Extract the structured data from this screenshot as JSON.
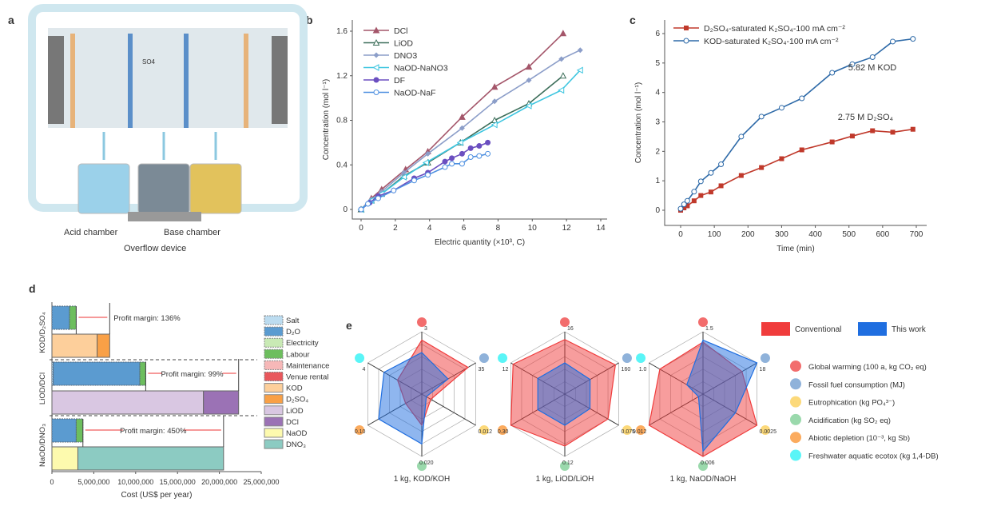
{
  "panel_labels": [
    "a",
    "b",
    "c",
    "d",
    "e"
  ],
  "panel_a": {
    "acid_label": "Acid chamber",
    "base_label": "Base chamber",
    "device_label": "Overflow device",
    "ion_label": "SO4"
  },
  "chart_data": [
    {
      "panel": "b",
      "type": "line",
      "xlabel": "Electric quantity (×10³, C)",
      "ylabel": "Concentration (mol l⁻¹)",
      "xlim": [
        0,
        14
      ],
      "ylim": [
        0,
        1.6
      ],
      "xticks": [
        0,
        2,
        4,
        6,
        8,
        10,
        12,
        14
      ],
      "yticks": [
        0,
        0.4,
        0.8,
        1.2,
        1.6
      ],
      "legend": "top-left",
      "series": [
        {
          "name": "DCl",
          "color": "#a4566a",
          "marker": "triangle",
          "x": [
            0,
            0.6,
            1.2,
            2.6,
            3.9,
            5.9,
            7.8,
            9.8,
            11.8
          ],
          "y": [
            0,
            0.1,
            0.18,
            0.36,
            0.52,
            0.83,
            1.1,
            1.28,
            1.58
          ]
        },
        {
          "name": "LiOD",
          "color": "#3c6e5a",
          "marker": "triangle-open",
          "x": [
            0,
            0.6,
            1.2,
            2.5,
            3.9,
            5.8,
            7.8,
            9.8,
            11.8
          ],
          "y": [
            0,
            0.08,
            0.14,
            0.3,
            0.42,
            0.6,
            0.8,
            0.95,
            1.2
          ]
        },
        {
          "name": "DNO3",
          "color": "#8c9ec9",
          "marker": "diamond",
          "x": [
            0,
            0.6,
            1.2,
            2.5,
            3.9,
            5.9,
            7.8,
            9.8,
            11.7,
            12.8
          ],
          "y": [
            0,
            0.09,
            0.16,
            0.33,
            0.5,
            0.73,
            0.97,
            1.16,
            1.35,
            1.43
          ]
        },
        {
          "name": "NaOD-NaNO3",
          "color": "#3fc6e0",
          "marker": "triangle-left-open",
          "x": [
            0,
            0.6,
            1.2,
            2.5,
            3.8,
            5.8,
            7.8,
            9.8,
            11.7,
            12.8
          ],
          "y": [
            0,
            0.08,
            0.14,
            0.29,
            0.42,
            0.6,
            0.76,
            0.93,
            1.07,
            1.25
          ]
        },
        {
          "name": "DF",
          "color": "#6b4fc0",
          "marker": "circle",
          "x": [
            0,
            0.5,
            1,
            1.9,
            3.1,
            3.9,
            4.9,
            5.3,
            5.9,
            6.4,
            6.9,
            7.4
          ],
          "y": [
            0,
            0.06,
            0.12,
            0.17,
            0.28,
            0.33,
            0.43,
            0.46,
            0.5,
            0.55,
            0.57,
            0.6
          ]
        },
        {
          "name": "NaOD-NaF",
          "color": "#4d8fe0",
          "marker": "circle-open",
          "x": [
            0,
            0.4,
            1,
            1.9,
            3.1,
            3.9,
            4.9,
            5.3,
            5.9,
            6.4,
            6.9,
            7.4
          ],
          "y": [
            0,
            0.05,
            0.1,
            0.17,
            0.26,
            0.31,
            0.38,
            0.41,
            0.41,
            0.47,
            0.48,
            0.5
          ]
        }
      ]
    },
    {
      "panel": "c",
      "type": "line",
      "xlabel": "Time (min)",
      "ylabel": "Concentration (mol l⁻¹)",
      "xlim": [
        0,
        700
      ],
      "ylim": [
        0,
        6
      ],
      "xticks": [
        0,
        100,
        200,
        300,
        400,
        500,
        600,
        700
      ],
      "yticks": [
        0,
        1,
        2,
        3,
        4,
        5,
        6
      ],
      "legend": "top-left",
      "series": [
        {
          "name": "D₂SO₄-saturated K₂SO₄-100 mA cm⁻²",
          "color": "#c0392b",
          "marker": "square",
          "x": [
            0,
            10,
            20,
            40,
            60,
            90,
            120,
            180,
            240,
            300,
            360,
            450,
            510,
            570,
            630,
            690
          ],
          "y": [
            0,
            0.08,
            0.15,
            0.32,
            0.5,
            0.62,
            0.83,
            1.18,
            1.45,
            1.75,
            2.05,
            2.32,
            2.52,
            2.7,
            2.65,
            2.75
          ]
        },
        {
          "name": "KOD-saturated K₂SO₄-100 mA cm⁻²",
          "color": "#2e6aa8",
          "marker": "circle-open",
          "x": [
            0,
            10,
            20,
            40,
            60,
            90,
            120,
            180,
            240,
            300,
            360,
            450,
            510,
            570,
            630,
            690
          ],
          "y": [
            0.05,
            0.2,
            0.32,
            0.63,
            0.98,
            1.27,
            1.56,
            2.5,
            3.18,
            3.48,
            3.8,
            4.67,
            4.96,
            5.2,
            5.73,
            5.82
          ]
        }
      ],
      "annotations": [
        "5.82 M KOD",
        "2.75 M D₂SO₄"
      ]
    },
    {
      "panel": "d",
      "type": "bar",
      "orientation": "horizontal",
      "stacked": true,
      "xlabel": "Cost (US$ per year)",
      "xlim": [
        0,
        25000000
      ],
      "xticks": [
        "0",
        "5,000,000",
        "10,000,000",
        "15,000,000",
        "20,000,000",
        "25,000,000"
      ],
      "legend": "right",
      "categories": [
        "KOD/D₂SO₄",
        "LiOD/DCl",
        "NaOD/DNO₃"
      ],
      "components": [
        {
          "name": "Salt",
          "color": "#bcdcf0"
        },
        {
          "name": "D₂O",
          "color": "#5b9bd0"
        },
        {
          "name": "Electricity",
          "color": "#c9eab5"
        },
        {
          "name": "Labour",
          "color": "#6dbe5e"
        },
        {
          "name": "Maintenance",
          "color": "#f7b8b8"
        },
        {
          "name": "Venue rental",
          "color": "#e8575c"
        },
        {
          "name": "KOD",
          "color": "#fdcf9b"
        },
        {
          "name": "D₂SO₄",
          "color": "#f9a046"
        },
        {
          "name": "LiOD",
          "color": "#d9c7e2"
        },
        {
          "name": "DCl",
          "color": "#9b72b5"
        },
        {
          "name": "NaOD",
          "color": "#fdfaae"
        },
        {
          "name": "DNO₃",
          "color": "#8ccbc2"
        }
      ],
      "groups": [
        {
          "cost": [
            [
              "Salt",
              0
            ],
            [
              "D₂O",
              2100000
            ],
            [
              "Labour",
              800000
            ]
          ],
          "revenue": [
            [
              "KOD",
              5400000
            ],
            [
              "D₂SO₄",
              1500000
            ]
          ],
          "margin": "Profit margin: 136%"
        },
        {
          "cost": [
            [
              "Salt",
              150000
            ],
            [
              "D₂O",
              10350000
            ],
            [
              "Labour",
              700000
            ]
          ],
          "revenue": [
            [
              "LiOD",
              18100000
            ],
            [
              "DCl",
              4200000
            ]
          ],
          "margin": "Profit margin: 99%"
        },
        {
          "cost": [
            [
              "Salt",
              0
            ],
            [
              "D₂O",
              2900000
            ],
            [
              "Labour",
              800000
            ]
          ],
          "revenue": [
            [
              "NaOD",
              3100000
            ],
            [
              "DNO₃",
              17400000
            ]
          ],
          "margin": "Profit margin: 450%"
        }
      ]
    },
    {
      "panel": "e",
      "type": "radar",
      "axes": [
        {
          "name": "Global warming (100 a, kg CO₂ eq)",
          "color": "#f26d6d"
        },
        {
          "name": "Fossil fuel consumption (MJ)",
          "color": "#8fb2da"
        },
        {
          "name": "Eutrophication (kg PO₄³⁻)",
          "color": "#fcd97a"
        },
        {
          "name": "Acidification (kg SO₂ eq)",
          "color": "#9ad9ac"
        },
        {
          "name": "Abiotic depletion (10⁻³, kg Sb)",
          "color": "#fbab5e"
        },
        {
          "name": "Freshwater aquatic ecotox (kg 1,4-DB)",
          "color": "#5af5f7"
        }
      ],
      "series_legend": [
        {
          "name": "Conventional",
          "color": "#f03c3c"
        },
        {
          "name": "This work",
          "color": "#1f6ee0"
        }
      ],
      "charts": [
        {
          "title": "1 kg, KOD/KOH",
          "max": [
            3,
            35,
            0.012,
            0.02,
            0.1,
            4
          ],
          "max_labels": [
            "3",
            "35",
            "0.012",
            "0.020",
            "0.10",
            "4"
          ],
          "conventional": [
            2.6,
            30,
            0.002,
            0.01,
            0.03,
            1.8
          ],
          "this_work": [
            2.0,
            17,
            0.001,
            0.016,
            0.08,
            2.8
          ]
        },
        {
          "title": "1 kg, LiOD/LiOH",
          "max": [
            16,
            160,
            0.075,
            0.12,
            0.3,
            12
          ],
          "max_labels": [
            "16",
            "160",
            "0.075",
            "0.12",
            "0.30",
            "12"
          ],
          "conventional": [
            14,
            150,
            0.06,
            0.1,
            0.3,
            11.5
          ],
          "this_work": [
            8,
            75,
            0.035,
            0.06,
            0.15,
            6
          ]
        },
        {
          "title": "1 kg, NaOD/NaOH",
          "max": [
            1.5,
            18,
            0.0025,
            0.006,
            0.012,
            1.0
          ],
          "max_labels": [
            "1.5",
            "18",
            "0.0025",
            "0.006",
            "0.012",
            "1.0"
          ],
          "conventional": [
            1.25,
            13,
            0.0025,
            0.006,
            0.012,
            0.8
          ],
          "this_work": [
            1.3,
            18,
            0.0015,
            0.0055,
            0.001,
            0.3
          ]
        }
      ]
    }
  ]
}
